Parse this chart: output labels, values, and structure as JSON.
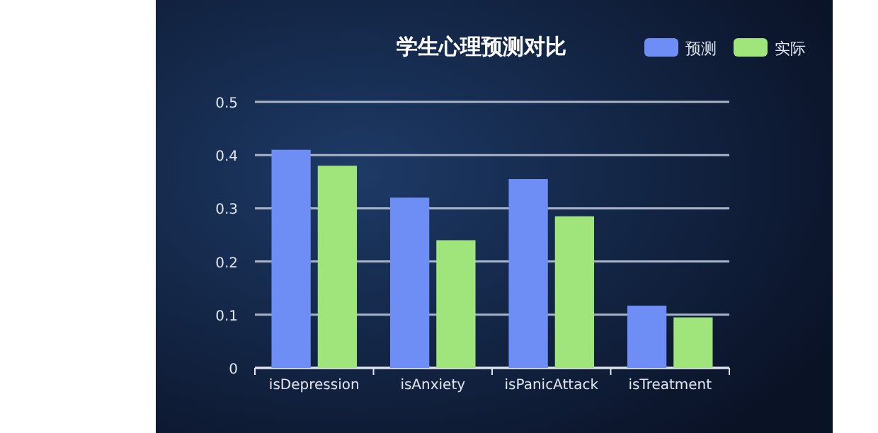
{
  "chart_data": {
    "type": "bar",
    "title": "学生心理预测对比",
    "categories": [
      "isDepression",
      "isAnxiety",
      "isPanicAttack",
      "isTreatment"
    ],
    "series": [
      {
        "name": "预测",
        "color": "#6e8ef5",
        "values": [
          0.41,
          0.32,
          0.355,
          0.117
        ]
      },
      {
        "name": "实际",
        "color": "#a0e57c",
        "values": [
          0.38,
          0.24,
          0.285,
          0.095
        ]
      }
    ],
    "ylim": [
      0,
      0.5
    ],
    "yticks": [
      0,
      0.1,
      0.2,
      0.3,
      0.4,
      0.5
    ],
    "grid": "y",
    "legend": "top right"
  }
}
